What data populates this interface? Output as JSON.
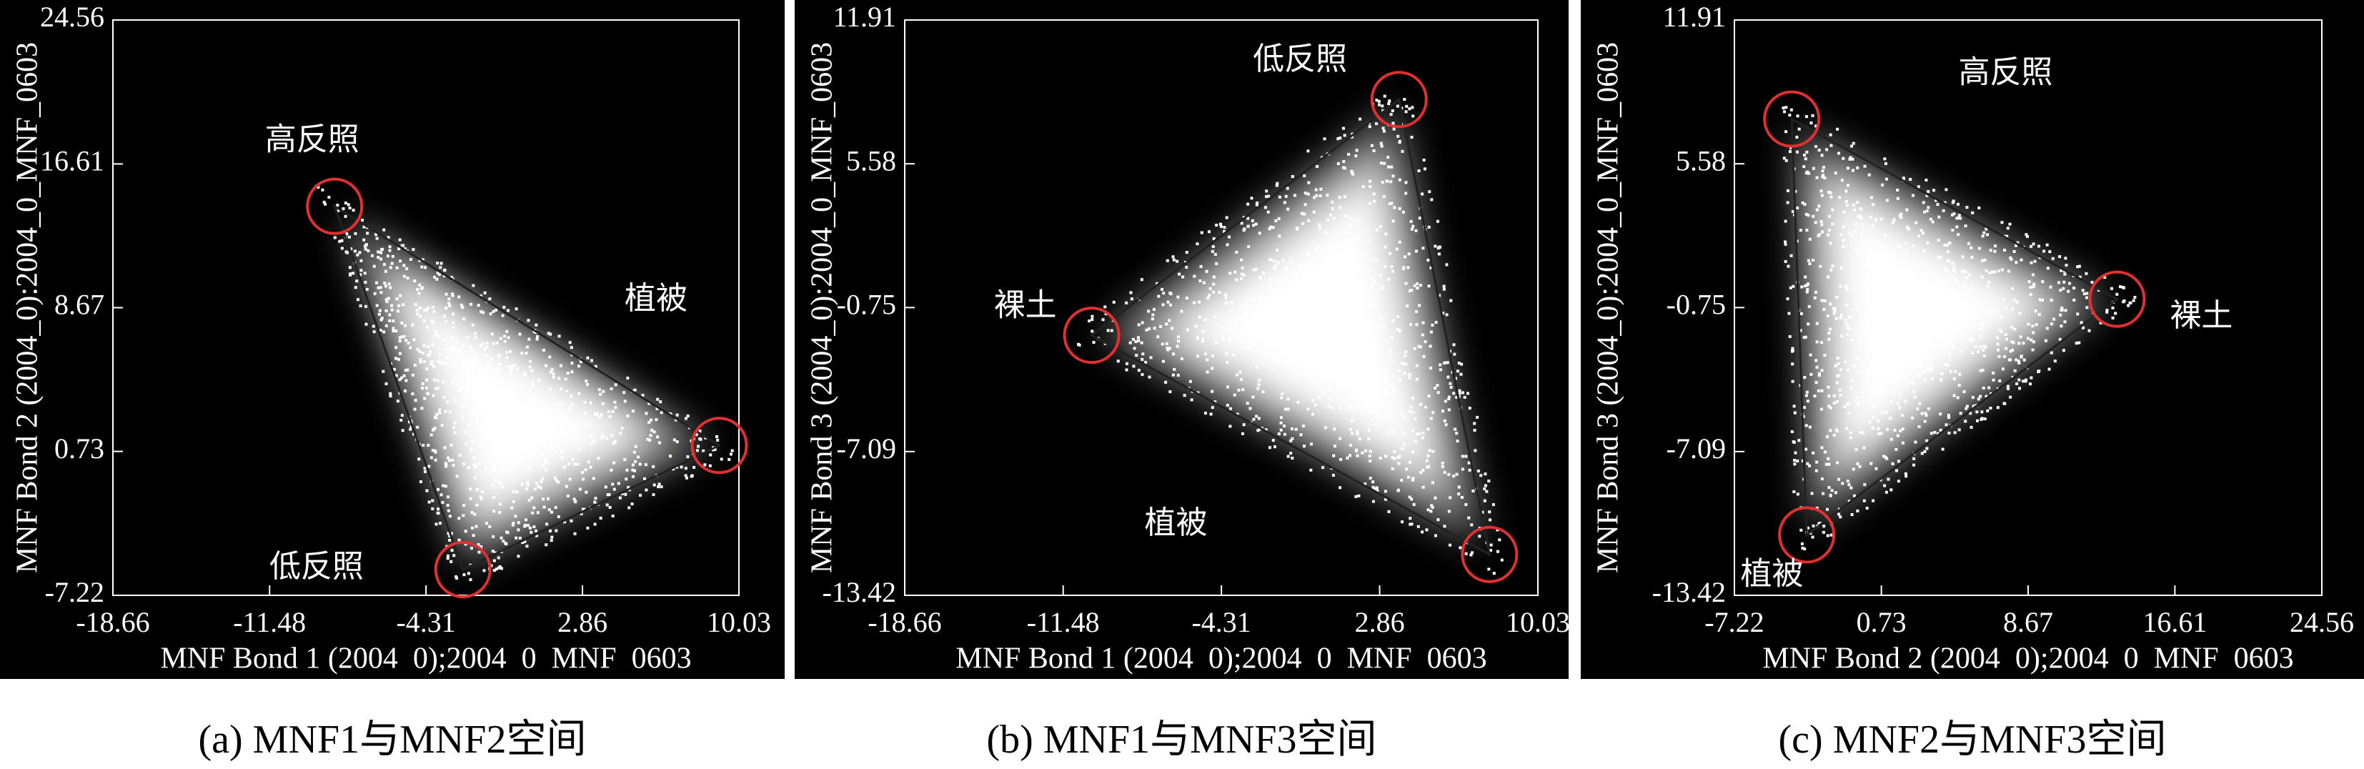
{
  "chart_data": [
    {
      "type": "scatter",
      "caption": "(a) MNF1与MNF2空间",
      "xlabel": "MNF Bond 1 (2004  0);2004  0  MNF  0603",
      "ylabel": "MNF Bond 2 (2004_0):2004_0_MNF_0603",
      "xlim": [
        -18.66,
        10.03
      ],
      "xticks": [
        -18.66,
        -11.48,
        -4.31,
        2.86,
        10.03
      ],
      "ylim": [
        -7.22,
        24.56
      ],
      "yticks": [
        -7.22,
        0.73,
        8.67,
        16.61,
        24.56
      ],
      "endmembers": {
        "x": [
          -8.5,
          9.13,
          -2.62
        ],
        "y": [
          14.27,
          1.06,
          -5.8
        ],
        "color": "#e03030"
      },
      "annotations": [
        {
          "text": "高反照",
          "x": -9.53,
          "y": 17.87
        },
        {
          "text": "植被",
          "x": 6.23,
          "y": 9.09
        },
        {
          "text": "低反照",
          "x": -9.33,
          "y": -5.71
        }
      ]
    },
    {
      "type": "scatter",
      "caption": "(b) MNF1与MNF3空间",
      "xlabel": "MNF Bond 1 (2004  0);2004  0  MNF  0603",
      "ylabel": "MNF Bond 3 (2004_0):2004_0_MNF_0603",
      "xlim": [
        -18.66,
        10.03
      ],
      "xticks": [
        -18.66,
        -11.48,
        -4.31,
        2.86,
        10.03
      ],
      "ylim": [
        -13.42,
        11.91
      ],
      "yticks": [
        -13.42,
        -7.09,
        -0.75,
        5.58,
        11.91
      ],
      "endmembers": {
        "x": [
          3.74,
          -10.19,
          7.84
        ],
        "y": [
          8.41,
          -1.97,
          -11.62
        ],
        "color": "#e03030"
      },
      "annotations": [
        {
          "text": "低反照",
          "x": -0.75,
          "y": 10.12
        },
        {
          "text": "裸土",
          "x": -13.2,
          "y": -0.72
        },
        {
          "text": "植被",
          "x": -6.37,
          "y": -10.3
        }
      ]
    },
    {
      "type": "scatter",
      "caption": "(c) MNF2与MNF3空间",
      "xlabel": "MNF Bond 2 (2004  0);2004  0  MNF  0603",
      "ylabel": "MNF Bond 3 (2004_0):2004_0_MNF_0603",
      "xlim": [
        -7.22,
        24.56
      ],
      "xticks": [
        -7.22,
        0.73,
        8.67,
        16.61,
        24.56
      ],
      "ylim": [
        -13.42,
        11.91
      ],
      "yticks": [
        -13.42,
        -7.09,
        -0.75,
        5.58,
        11.91
      ],
      "endmembers": {
        "x": [
          -4.12,
          13.48,
          -3.31
        ],
        "y": [
          7.55,
          -0.38,
          -10.76
        ],
        "color": "#e03030"
      },
      "annotations": [
        {
          "text": "高反照",
          "x": 7.45,
          "y": 9.53
        },
        {
          "text": "裸土",
          "x": 18.04,
          "y": -1.18
        },
        {
          "text": "植被",
          "x": -5.19,
          "y": -12.55
        }
      ]
    }
  ]
}
